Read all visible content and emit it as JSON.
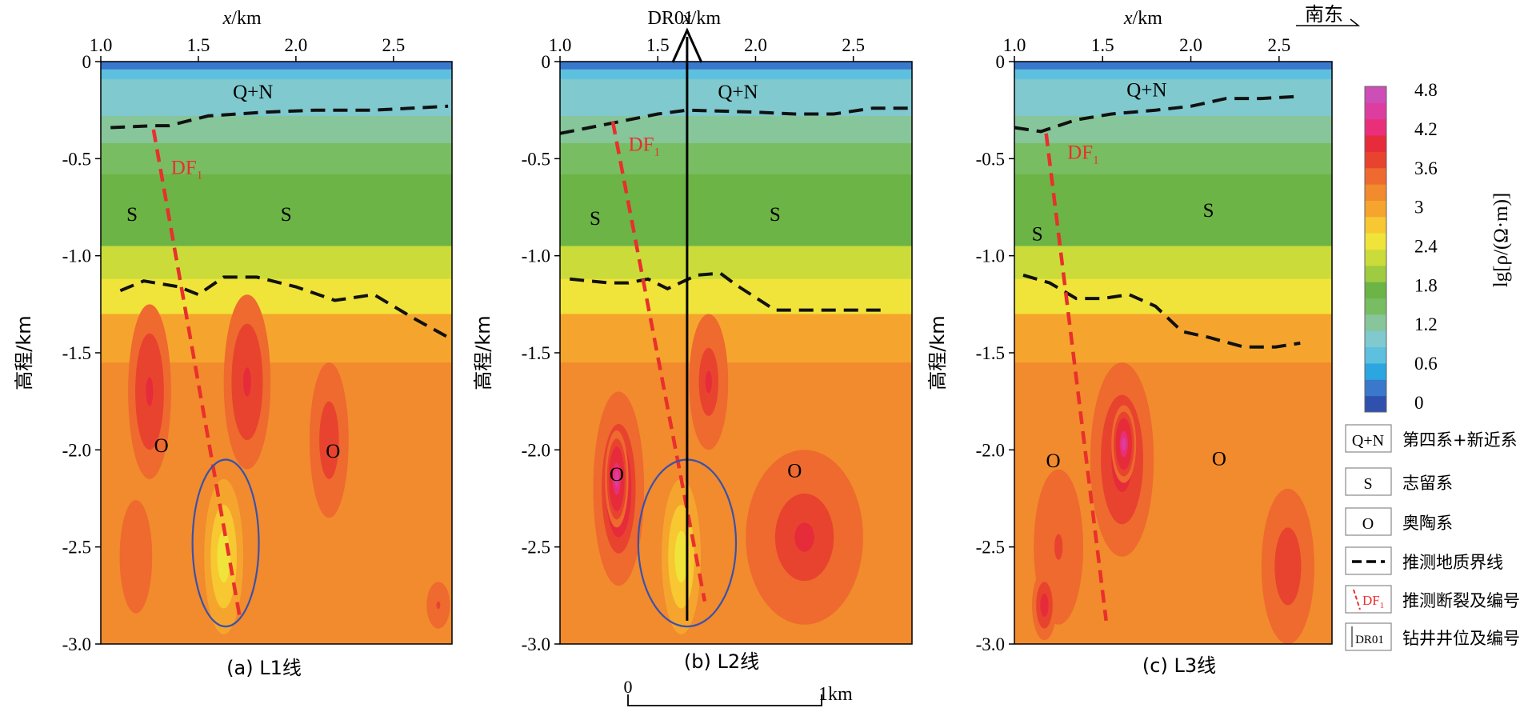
{
  "chart_data": {
    "type": "heatmap",
    "x_label": "x/km",
    "y_label": "高程/km",
    "x_ticks": [
      "1.0",
      "1.5",
      "2.0",
      "2.5"
    ],
    "y_ticks": [
      "0",
      "-0.5",
      "-1.0",
      "-1.5",
      "-2.0",
      "-2.5",
      "-3.0"
    ],
    "xlim": [
      1.0,
      2.8
    ],
    "ylim": [
      -3.0,
      0
    ],
    "colorbar": {
      "label": "lg[ρ/(Ω·m)]",
      "range": [
        0,
        5.0
      ],
      "ticks": [
        "4.8",
        "4.2",
        "3.6",
        "3",
        "2.4",
        "1.8",
        "1.2",
        "0.6",
        "0"
      ],
      "colors": [
        "#3050b0",
        "#3a78cc",
        "#2ba6e0",
        "#5cc0de",
        "#7fc9cf",
        "#86c69a",
        "#79bd62",
        "#6cb446",
        "#9fcb40",
        "#cbdc3a",
        "#f0e43a",
        "#f7c832",
        "#f5a52e",
        "#f28a2e",
        "#ee6a2e",
        "#e8432f",
        "#e62b3a",
        "#ea2f7a",
        "#de3da0",
        "#cc4eb6"
      ]
    },
    "panels": [
      {
        "caption": "(a) L1线",
        "formation_labels": [
          {
            "text": "Q+N",
            "x": 1.78,
            "y": -0.19
          },
          {
            "text": "S",
            "x": 1.16,
            "y": -0.82
          },
          {
            "text": "S",
            "x": 1.95,
            "y": -0.82
          },
          {
            "text": "O",
            "x": 1.31,
            "y": -2.01
          },
          {
            "text": "O",
            "x": 2.19,
            "y": -2.04
          }
        ],
        "fault": {
          "label": "DF",
          "subscript": "1",
          "line": [
            [
              1.27,
              -0.35
            ],
            [
              1.71,
              -2.85
            ]
          ],
          "label_pos": [
            1.36,
            -0.58
          ]
        },
        "boundaries": [
          [
            [
              1.05,
              -0.34
            ],
            [
              1.27,
              -0.33
            ],
            [
              1.35,
              -0.33
            ],
            [
              1.55,
              -0.28
            ],
            [
              1.85,
              -0.26
            ],
            [
              2.1,
              -0.25
            ],
            [
              2.4,
              -0.25
            ],
            [
              2.78,
              -0.23
            ]
          ],
          [
            [
              1.1,
              -1.18
            ],
            [
              1.22,
              -1.13
            ],
            [
              1.4,
              -1.16
            ],
            [
              1.5,
              -1.2
            ],
            [
              1.63,
              -1.11
            ],
            [
              1.8,
              -1.11
            ],
            [
              2.0,
              -1.16
            ],
            [
              2.2,
              -1.23
            ],
            [
              2.4,
              -1.2
            ],
            [
              2.6,
              -1.32
            ],
            [
              2.78,
              -1.42
            ]
          ]
        ],
        "ellipse": {
          "cx": 1.64,
          "cy": -2.48,
          "rx": 0.17,
          "ry": 0.43
        },
        "anomalies": [
          {
            "cx": 1.25,
            "cy": -1.7,
            "rx": 0.11,
            "ry": 0.45,
            "value": 4.1
          },
          {
            "cx": 1.75,
            "cy": -1.65,
            "rx": 0.12,
            "ry": 0.45,
            "value": 4.1
          },
          {
            "cx": 2.17,
            "cy": -1.95,
            "rx": 0.1,
            "ry": 0.4,
            "value": 3.9
          },
          {
            "cx": 1.18,
            "cy": -2.55,
            "rx": 0.1,
            "ry": 0.35,
            "value": 3.7
          },
          {
            "cx": 2.73,
            "cy": -2.8,
            "rx": 0.06,
            "ry": 0.12,
            "value": 3.8
          },
          {
            "cx": 1.63,
            "cy": -2.55,
            "rx": 0.1,
            "ry": 0.4,
            "value": 2.6
          }
        ]
      },
      {
        "caption": "(b) L2线",
        "well": {
          "label": "DR01",
          "x": 1.65
        },
        "formation_labels": [
          {
            "text": "Q+N",
            "x": 1.91,
            "y": -0.19
          },
          {
            "text": "S",
            "x": 1.18,
            "y": -0.84
          },
          {
            "text": "S",
            "x": 2.1,
            "y": -0.82
          },
          {
            "text": "O",
            "x": 1.29,
            "y": -2.16
          },
          {
            "text": "O",
            "x": 2.2,
            "y": -2.14
          }
        ],
        "fault": {
          "label": "DF",
          "subscript": "1",
          "line": [
            [
              1.27,
              -0.31
            ],
            [
              1.74,
              -2.78
            ]
          ],
          "label_pos": [
            1.35,
            -0.46
          ]
        },
        "boundaries": [
          [
            [
              1.0,
              -0.37
            ],
            [
              1.25,
              -0.32
            ],
            [
              1.5,
              -0.27
            ],
            [
              1.65,
              -0.25
            ],
            [
              2.0,
              -0.26
            ],
            [
              2.2,
              -0.27
            ],
            [
              2.4,
              -0.27
            ],
            [
              2.6,
              -0.24
            ],
            [
              2.8,
              -0.24
            ]
          ],
          [
            [
              1.05,
              -1.12
            ],
            [
              1.25,
              -1.14
            ],
            [
              1.35,
              -1.14
            ],
            [
              1.45,
              -1.12
            ],
            [
              1.55,
              -1.17
            ],
            [
              1.7,
              -1.1
            ],
            [
              1.82,
              -1.09
            ],
            [
              1.9,
              -1.15
            ],
            [
              2.1,
              -1.28
            ],
            [
              2.3,
              -1.28
            ],
            [
              2.65,
              -1.28
            ]
          ]
        ],
        "ellipse": {
          "cx": 1.65,
          "cy": -2.48,
          "rx": 0.25,
          "ry": 0.43
        },
        "anomalies": [
          {
            "cx": 1.3,
            "cy": -2.2,
            "rx": 0.13,
            "ry": 0.5,
            "value": 4.3
          },
          {
            "cx": 1.29,
            "cy": -2.15,
            "rx": 0.06,
            "ry": 0.25,
            "value": 4.6
          },
          {
            "cx": 1.76,
            "cy": -1.65,
            "rx": 0.1,
            "ry": 0.35,
            "value": 4.0
          },
          {
            "cx": 2.25,
            "cy": -2.45,
            "rx": 0.3,
            "ry": 0.45,
            "value": 4.0
          },
          {
            "cx": 1.62,
            "cy": -2.55,
            "rx": 0.1,
            "ry": 0.4,
            "value": 2.6
          }
        ]
      },
      {
        "caption": "(c) L3线",
        "formation_labels": [
          {
            "text": "Q+N",
            "x": 1.75,
            "y": -0.18
          },
          {
            "text": "S",
            "x": 2.1,
            "y": -0.8
          },
          {
            "text": "S",
            "x": 1.13,
            "y": -0.92
          },
          {
            "text": "O",
            "x": 1.22,
            "y": -2.09
          },
          {
            "text": "O",
            "x": 2.16,
            "y": -2.08
          }
        ],
        "fault": {
          "label": "DF",
          "subscript": "1",
          "line": [
            [
              1.18,
              -0.37
            ],
            [
              1.52,
              -2.88
            ]
          ],
          "label_pos": [
            1.3,
            -0.5
          ]
        },
        "boundaries": [
          [
            [
              1.0,
              -0.34
            ],
            [
              1.15,
              -0.36
            ],
            [
              1.35,
              -0.3
            ],
            [
              1.55,
              -0.27
            ],
            [
              1.8,
              -0.25
            ],
            [
              2.0,
              -0.23
            ],
            [
              2.2,
              -0.19
            ],
            [
              2.4,
              -0.19
            ],
            [
              2.6,
              -0.18
            ]
          ],
          [
            [
              1.05,
              -1.1
            ],
            [
              1.2,
              -1.14
            ],
            [
              1.35,
              -1.22
            ],
            [
              1.5,
              -1.22
            ],
            [
              1.65,
              -1.2
            ],
            [
              1.8,
              -1.26
            ],
            [
              1.95,
              -1.39
            ],
            [
              2.1,
              -1.42
            ],
            [
              2.3,
              -1.47
            ],
            [
              2.48,
              -1.47
            ],
            [
              2.62,
              -1.45
            ]
          ]
        ],
        "anomalies": [
          {
            "cx": 1.61,
            "cy": -2.05,
            "rx": 0.18,
            "ry": 0.5,
            "value": 4.2
          },
          {
            "cx": 1.62,
            "cy": -1.97,
            "rx": 0.07,
            "ry": 0.2,
            "value": 4.6
          },
          {
            "cx": 1.25,
            "cy": -2.5,
            "rx": 0.14,
            "ry": 0.4,
            "value": 3.8
          },
          {
            "cx": 1.17,
            "cy": -2.8,
            "rx": 0.07,
            "ry": 0.18,
            "value": 4.2
          },
          {
            "cx": 2.55,
            "cy": -2.6,
            "rx": 0.15,
            "ry": 0.4,
            "value": 3.9
          }
        ]
      }
    ],
    "scale_bar": {
      "labels": [
        "0",
        "1km"
      ]
    },
    "compass": "南东",
    "legend": [
      {
        "symbol": "Q+N",
        "label": "第四系+新近系"
      },
      {
        "symbol": "S",
        "label": "志留系"
      },
      {
        "symbol": "O",
        "label": "奥陶系"
      },
      {
        "symbol": "dashed-line-icon",
        "label": "推测地质界线"
      },
      {
        "symbol": "DF1",
        "label": "推测断裂及编号"
      },
      {
        "symbol": "DR01",
        "label": "钻井井位及编号"
      }
    ]
  }
}
